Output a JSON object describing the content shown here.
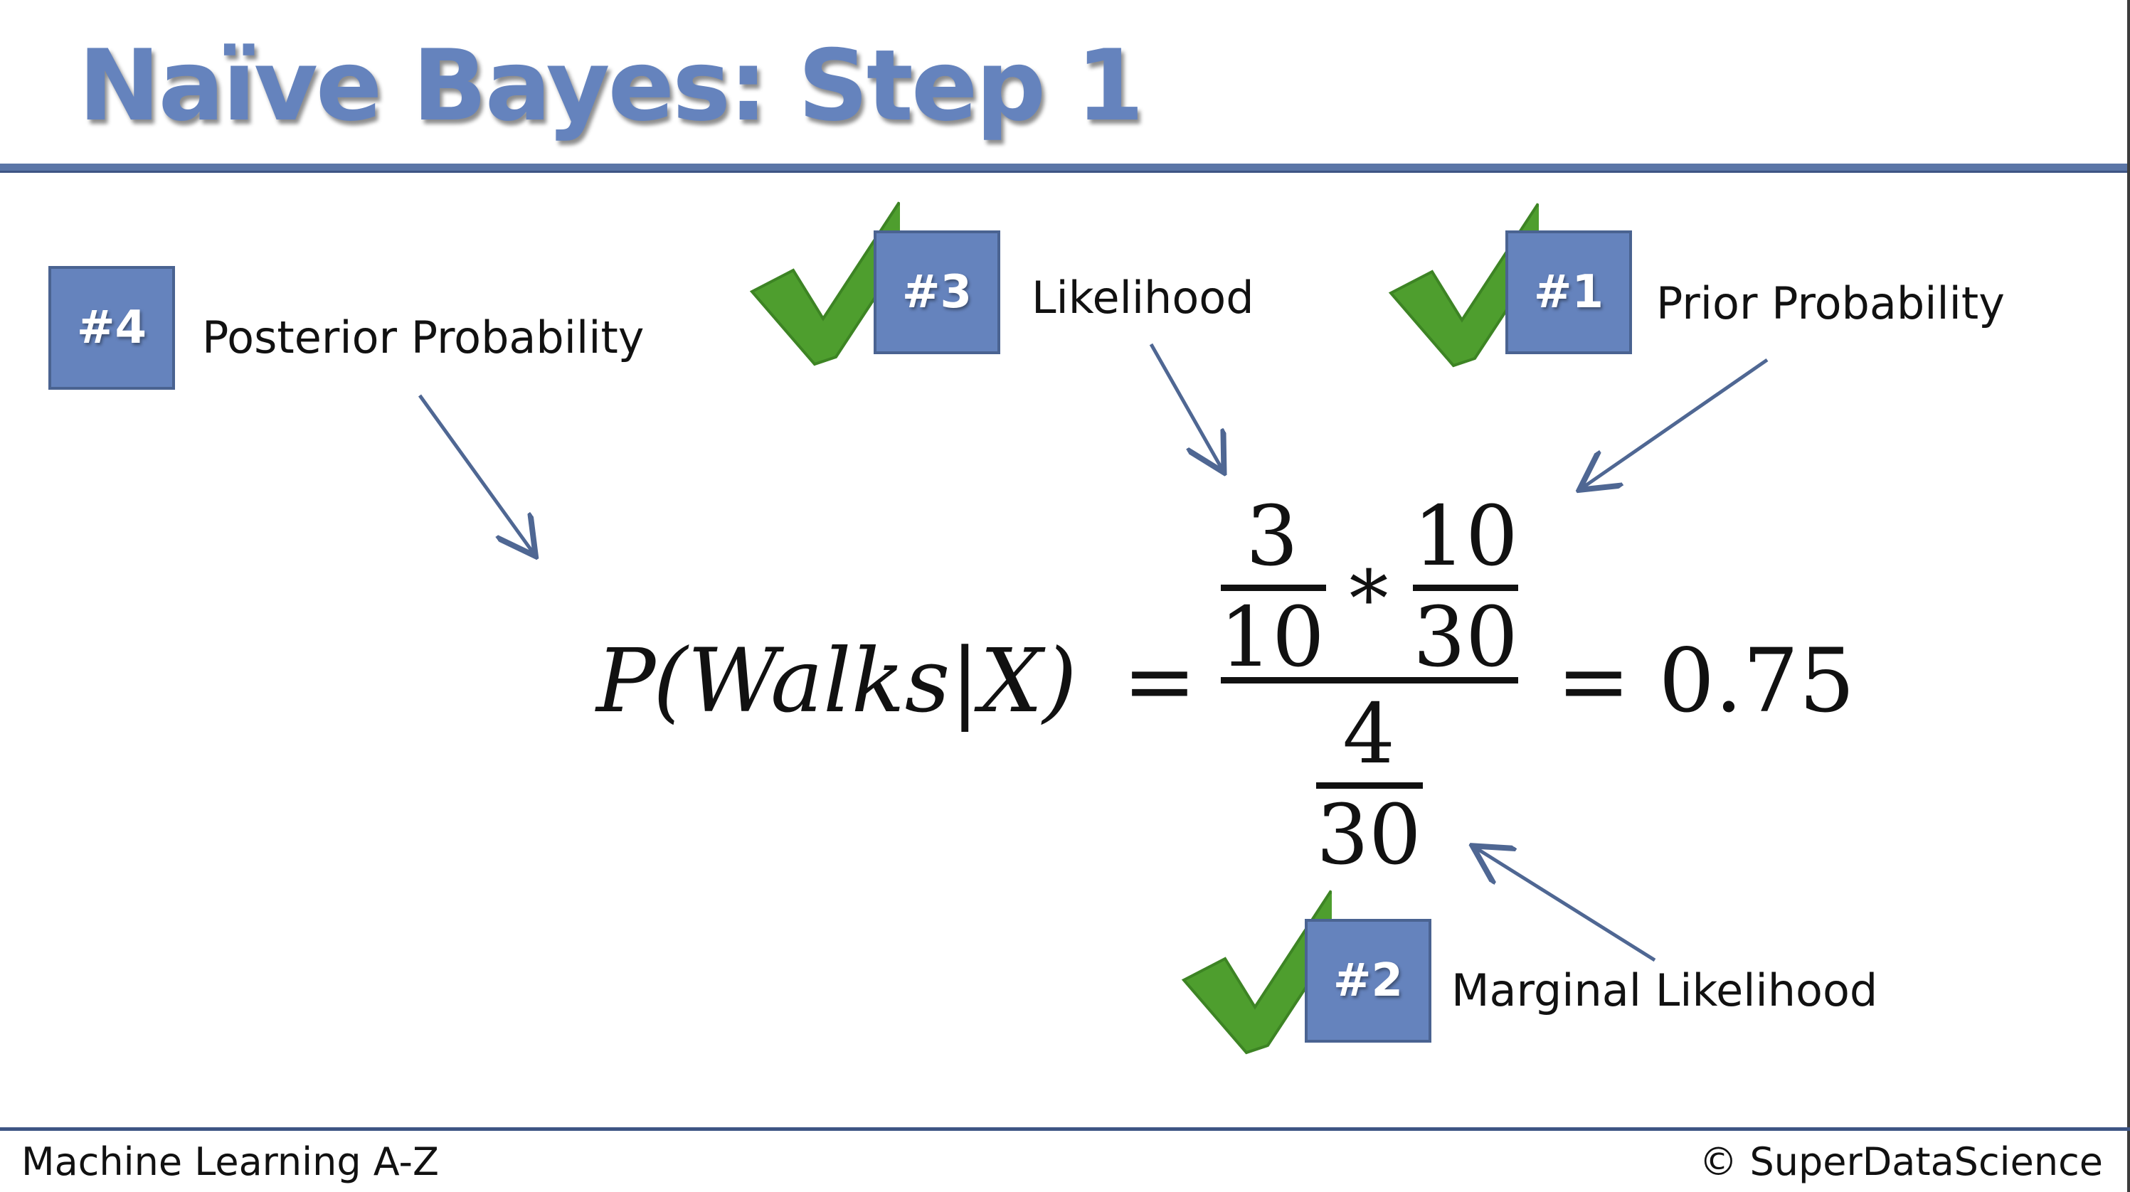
{
  "slide": {
    "title": "Naïve Bayes: Step 1",
    "footer_left": "Machine Learning A-Z",
    "footer_right": "© SuperDataScience"
  },
  "colors": {
    "accent": "#6583bd",
    "accent_border": "#4a6391",
    "check": "#4e9e2e",
    "text": "#111111"
  },
  "annotations": [
    {
      "badge": "#4",
      "label": "Posterior Probability",
      "checked": false
    },
    {
      "badge": "#3",
      "label": "Likelihood",
      "checked": true
    },
    {
      "badge": "#1",
      "label": "Prior Probability",
      "checked": true
    },
    {
      "badge": "#2",
      "label": "Marginal Likelihood",
      "checked": true
    }
  ],
  "formula": {
    "lhs_p": "P",
    "lhs_args": "(Walks|X)",
    "equals": "=",
    "likelihood_num": "3",
    "likelihood_den": "10",
    "times": "*",
    "prior_num": "10",
    "prior_den": "30",
    "marginal_num": "4",
    "marginal_den": "30",
    "result": "= 0.75"
  }
}
